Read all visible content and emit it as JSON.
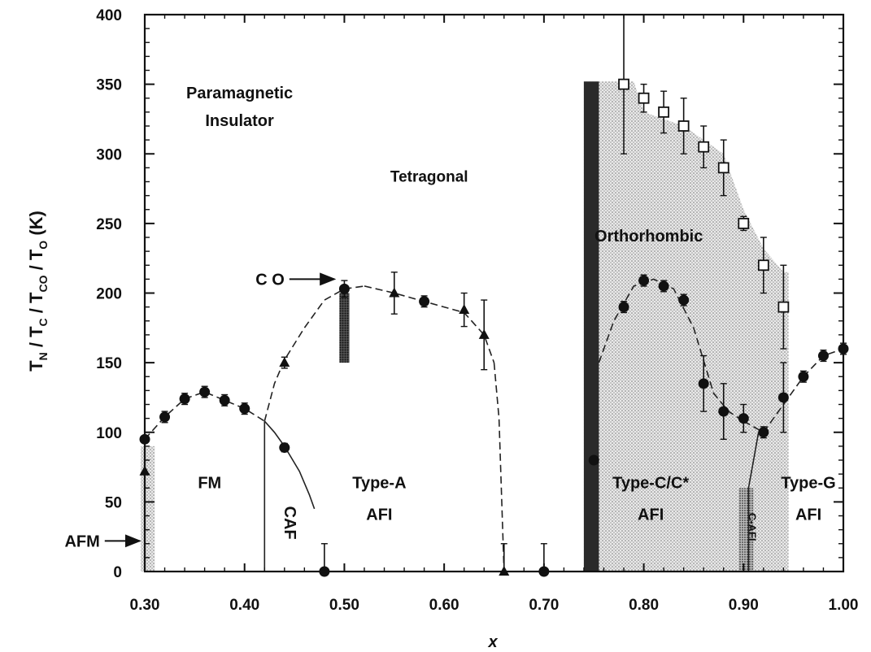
{
  "chart_data": {
    "type": "scatter",
    "xlabel": "x",
    "ylabel": "T_N / T_C / T_CO / T_O (K)",
    "ylabel_parts": {
      "T_main": "T",
      "sub_N": "N",
      "sub_C": "C",
      "sub_CO": "CO",
      "sub_O": "O",
      "unit": "(K)",
      "slash": "/"
    },
    "xlim": [
      0.3,
      1.0
    ],
    "ylim": [
      0,
      400
    ],
    "x_ticks": [
      0.3,
      0.4,
      0.5,
      0.6,
      0.7,
      0.8,
      0.9,
      1.0
    ],
    "x_tick_labels": [
      "0.30",
      "0.40",
      "0.50",
      "0.60",
      "0.70",
      "0.80",
      "0.90",
      "1.00"
    ],
    "y_ticks": [
      0,
      50,
      100,
      150,
      200,
      250,
      300,
      350,
      400
    ],
    "y_tick_labels": [
      "0",
      "50",
      "100",
      "150",
      "200",
      "250",
      "300",
      "350",
      "400"
    ],
    "series": [
      {
        "marker": "filled-circle",
        "points": [
          {
            "x": 0.3,
            "y": 95,
            "err": 0
          },
          {
            "x": 0.32,
            "y": 111,
            "err": 4
          },
          {
            "x": 0.34,
            "y": 124,
            "err": 4
          },
          {
            "x": 0.36,
            "y": 129,
            "err": 4
          },
          {
            "x": 0.38,
            "y": 123,
            "err": 4
          },
          {
            "x": 0.4,
            "y": 117,
            "err": 4
          },
          {
            "x": 0.44,
            "y": 89,
            "err": 3
          },
          {
            "x": 0.48,
            "y": 0,
            "err": 20
          },
          {
            "x": 0.5,
            "y": 203,
            "err": 6
          },
          {
            "x": 0.58,
            "y": 194,
            "err": 4
          },
          {
            "x": 0.7,
            "y": 0,
            "err": 20
          },
          {
            "x": 0.75,
            "y": 80,
            "err": 0
          },
          {
            "x": 0.78,
            "y": 190,
            "err": 4
          },
          {
            "x": 0.8,
            "y": 209,
            "err": 4
          },
          {
            "x": 0.82,
            "y": 205,
            "err": 4
          },
          {
            "x": 0.84,
            "y": 195,
            "err": 4
          },
          {
            "x": 0.86,
            "y": 135,
            "err": 20
          },
          {
            "x": 0.88,
            "y": 115,
            "err": 20
          },
          {
            "x": 0.9,
            "y": 110,
            "err": 10
          },
          {
            "x": 0.92,
            "y": 100,
            "err": 4
          },
          {
            "x": 0.94,
            "y": 125,
            "err": 25
          },
          {
            "x": 0.96,
            "y": 140,
            "err": 4
          },
          {
            "x": 0.98,
            "y": 155,
            "err": 4
          },
          {
            "x": 1.0,
            "y": 160,
            "err": 4
          }
        ]
      },
      {
        "marker": "filled-triangle",
        "points": [
          {
            "x": 0.3,
            "y": 72,
            "err": 0
          },
          {
            "x": 0.44,
            "y": 150,
            "err": 4
          },
          {
            "x": 0.55,
            "y": 200,
            "err": 15
          },
          {
            "x": 0.62,
            "y": 188,
            "err": 12
          },
          {
            "x": 0.64,
            "y": 170,
            "err": 25
          },
          {
            "x": 0.66,
            "y": 0,
            "err": 20
          }
        ]
      },
      {
        "marker": "open-square",
        "points": [
          {
            "x": 0.78,
            "y": 350,
            "err": 50
          },
          {
            "x": 0.8,
            "y": 340,
            "err": 10
          },
          {
            "x": 0.82,
            "y": 330,
            "err": 15
          },
          {
            "x": 0.84,
            "y": 320,
            "err": 20
          },
          {
            "x": 0.86,
            "y": 305,
            "err": 15
          },
          {
            "x": 0.88,
            "y": 290,
            "err": 20
          },
          {
            "x": 0.9,
            "y": 250,
            "err": 5
          },
          {
            "x": 0.92,
            "y": 220,
            "err": 20
          },
          {
            "x": 0.94,
            "y": 190,
            "err": 30
          }
        ]
      }
    ],
    "region_labels": [
      {
        "id": "paramag-1",
        "text": "Paramagnetic",
        "x": 0.395,
        "y": 340,
        "size": 20
      },
      {
        "id": "paramag-2",
        "text": "Insulator",
        "x": 0.395,
        "y": 320,
        "size": 20
      },
      {
        "id": "tetragonal",
        "text": "Tetragonal",
        "x": 0.585,
        "y": 280,
        "size": 19
      },
      {
        "id": "orthorhombic",
        "text": "Orthorhombic",
        "x": 0.805,
        "y": 237,
        "size": 20
      },
      {
        "id": "fm",
        "text": "FM",
        "x": 0.365,
        "y": 60,
        "size": 20
      },
      {
        "id": "type-a",
        "text": "Type-A",
        "x": 0.535,
        "y": 60,
        "size": 20
      },
      {
        "id": "afi-a",
        "text": "AFI",
        "x": 0.535,
        "y": 37,
        "size": 20
      },
      {
        "id": "type-c",
        "text": "Type-C/C*",
        "x": 0.807,
        "y": 60,
        "size": 20
      },
      {
        "id": "afi-c",
        "text": "AFI",
        "x": 0.807,
        "y": 37,
        "size": 20
      },
      {
        "id": "type-g",
        "text": "Type-G",
        "x": 0.965,
        "y": 60,
        "size": 20
      },
      {
        "id": "afi-g",
        "text": "AFI",
        "x": 0.965,
        "y": 37,
        "size": 20
      }
    ],
    "vertical_labels": [
      {
        "id": "caf",
        "text": "CAF",
        "x": 0.44,
        "y": 35,
        "size": 20
      },
      {
        "id": "c-afi",
        "text": "C-AFI",
        "x": 0.905,
        "y": 32,
        "size": 13
      }
    ],
    "arrow_labels": [
      {
        "id": "co",
        "text": "C O",
        "x_text": 0.44,
        "y_text": 210,
        "x_to": 0.49,
        "y_to": 210
      },
      {
        "id": "afm",
        "text": "AFM",
        "x_text": 0.255,
        "y_text": 22,
        "x_to": 0.295,
        "y_to": 22
      }
    ],
    "shaded_regions": [
      {
        "id": "ortho-light",
        "fill": "light-dots",
        "points": [
          [
            0.74,
            0
          ],
          [
            0.74,
            352
          ],
          [
            0.79,
            352
          ],
          [
            0.8,
            330
          ],
          [
            0.84,
            320
          ],
          [
            0.88,
            300
          ],
          [
            0.9,
            260
          ],
          [
            0.92,
            232
          ],
          [
            0.94,
            215
          ],
          [
            0.945,
            215
          ],
          [
            0.945,
            0
          ]
        ]
      },
      {
        "id": "ortho-dark",
        "fill": "dark",
        "points": [
          [
            0.74,
            0
          ],
          [
            0.74,
            352
          ],
          [
            0.755,
            352
          ],
          [
            0.755,
            0
          ]
        ]
      },
      {
        "id": "co-bar",
        "fill": "dark-dots",
        "points": [
          [
            0.495,
            150
          ],
          [
            0.495,
            200
          ],
          [
            0.505,
            200
          ],
          [
            0.505,
            150
          ]
        ]
      },
      {
        "id": "c-afi-box",
        "fill": "mid-dots",
        "points": [
          [
            0.895,
            0
          ],
          [
            0.895,
            60
          ],
          [
            0.91,
            60
          ],
          [
            0.91,
            0
          ]
        ]
      },
      {
        "id": "afm-strip",
        "fill": "light-dots",
        "points": [
          [
            0.296,
            0
          ],
          [
            0.296,
            90
          ],
          [
            0.31,
            90
          ],
          [
            0.31,
            0
          ]
        ]
      }
    ],
    "boundary_lines": [
      {
        "id": "fm-dome",
        "style": "dashed",
        "points": [
          [
            0.3,
            95
          ],
          [
            0.32,
            111
          ],
          [
            0.34,
            124
          ],
          [
            0.36,
            129
          ],
          [
            0.38,
            123
          ],
          [
            0.4,
            117
          ],
          [
            0.42,
            108
          ]
        ]
      },
      {
        "id": "fm-caf-line",
        "style": "solid",
        "points": [
          [
            0.42,
            0
          ],
          [
            0.42,
            108
          ]
        ]
      },
      {
        "id": "caf-curve",
        "style": "solid",
        "points": [
          [
            0.42,
            108
          ],
          [
            0.43,
            100
          ],
          [
            0.44,
            90
          ],
          [
            0.455,
            72
          ],
          [
            0.465,
            55
          ],
          [
            0.47,
            45
          ]
        ]
      },
      {
        "id": "a-dome-left",
        "style": "dashed",
        "points": [
          [
            0.42,
            108
          ],
          [
            0.43,
            135
          ],
          [
            0.44,
            152
          ],
          [
            0.46,
            175
          ],
          [
            0.48,
            195
          ],
          [
            0.5,
            203
          ],
          [
            0.52,
            205
          ]
        ]
      },
      {
        "id": "a-dome-top",
        "style": "dashed",
        "points": [
          [
            0.52,
            205
          ],
          [
            0.55,
            200
          ],
          [
            0.58,
            194
          ],
          [
            0.62,
            186
          ],
          [
            0.64,
            170
          ],
          [
            0.65,
            150
          ]
        ]
      },
      {
        "id": "a-dome-right",
        "style": "dashed",
        "points": [
          [
            0.65,
            150
          ],
          [
            0.655,
            110
          ],
          [
            0.66,
            0
          ]
        ]
      },
      {
        "id": "c-dome",
        "style": "dashed",
        "points": [
          [
            0.755,
            150
          ],
          [
            0.77,
            180
          ],
          [
            0.79,
            205
          ],
          [
            0.81,
            210
          ],
          [
            0.83,
            203
          ],
          [
            0.85,
            175
          ],
          [
            0.87,
            128
          ],
          [
            0.885,
            115
          ],
          [
            0.9,
            108
          ]
        ]
      },
      {
        "id": "g-line",
        "style": "dashed",
        "points": [
          [
            0.9,
            108
          ],
          [
            0.92,
            100
          ],
          [
            0.94,
            120
          ],
          [
            0.96,
            140
          ],
          [
            0.98,
            155
          ],
          [
            1.0,
            160
          ]
        ]
      },
      {
        "id": "cafi-bound",
        "style": "solid",
        "points": [
          [
            0.905,
            0
          ],
          [
            0.905,
            60
          ],
          [
            0.91,
            80
          ],
          [
            0.915,
            100
          ]
        ]
      }
    ]
  }
}
